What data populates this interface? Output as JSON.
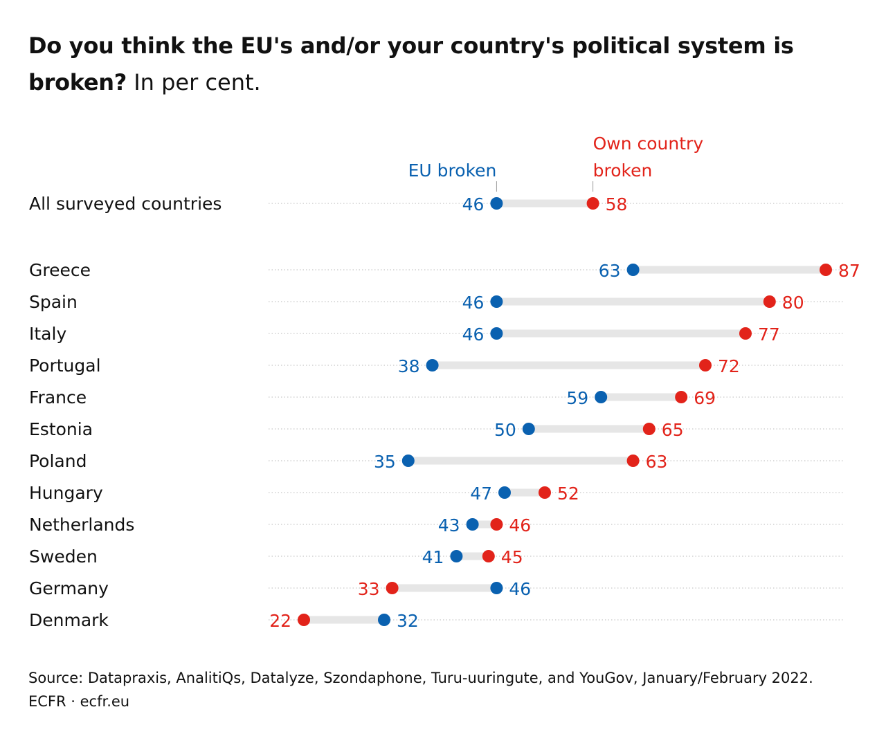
{
  "title": {
    "bold": "Do you think the EU's and/or your country's political system is broken?",
    "light": "In per cent."
  },
  "footer": {
    "source": "Source: Datapraxis, AnalitiQs, Datalyze, Szondaphone, Turu-uuringute, and YouGov, January/February 2022.",
    "credit": "ECFR · ecfr.eu"
  },
  "chart_data": {
    "type": "dumbbell",
    "series": [
      {
        "name": "EU broken",
        "color": "#0a61b0"
      },
      {
        "name": "Own country broken",
        "color": "#e2231a"
      }
    ],
    "legend_labels": {
      "eu": [
        "EU broken"
      ],
      "own": [
        "Own country",
        "broken"
      ]
    },
    "rows": [
      {
        "label": "All surveyed countries",
        "eu": 46,
        "own": 58
      },
      {
        "label": "Greece",
        "eu": 63,
        "own": 87
      },
      {
        "label": "Spain",
        "eu": 46,
        "own": 80
      },
      {
        "label": "Italy",
        "eu": 46,
        "own": 77
      },
      {
        "label": "Portugal",
        "eu": 38,
        "own": 72
      },
      {
        "label": "France",
        "eu": 59,
        "own": 69
      },
      {
        "label": "Estonia",
        "eu": 50,
        "own": 65
      },
      {
        "label": "Poland",
        "eu": 35,
        "own": 63
      },
      {
        "label": "Hungary",
        "eu": 47,
        "own": 52
      },
      {
        "label": "Netherlands",
        "eu": 43,
        "own": 46
      },
      {
        "label": "Sweden",
        "eu": 41,
        "own": 45
      },
      {
        "label": "Germany",
        "eu": 46,
        "own": 33
      },
      {
        "label": "Denmark",
        "eu": 32,
        "own": 22
      }
    ]
  }
}
